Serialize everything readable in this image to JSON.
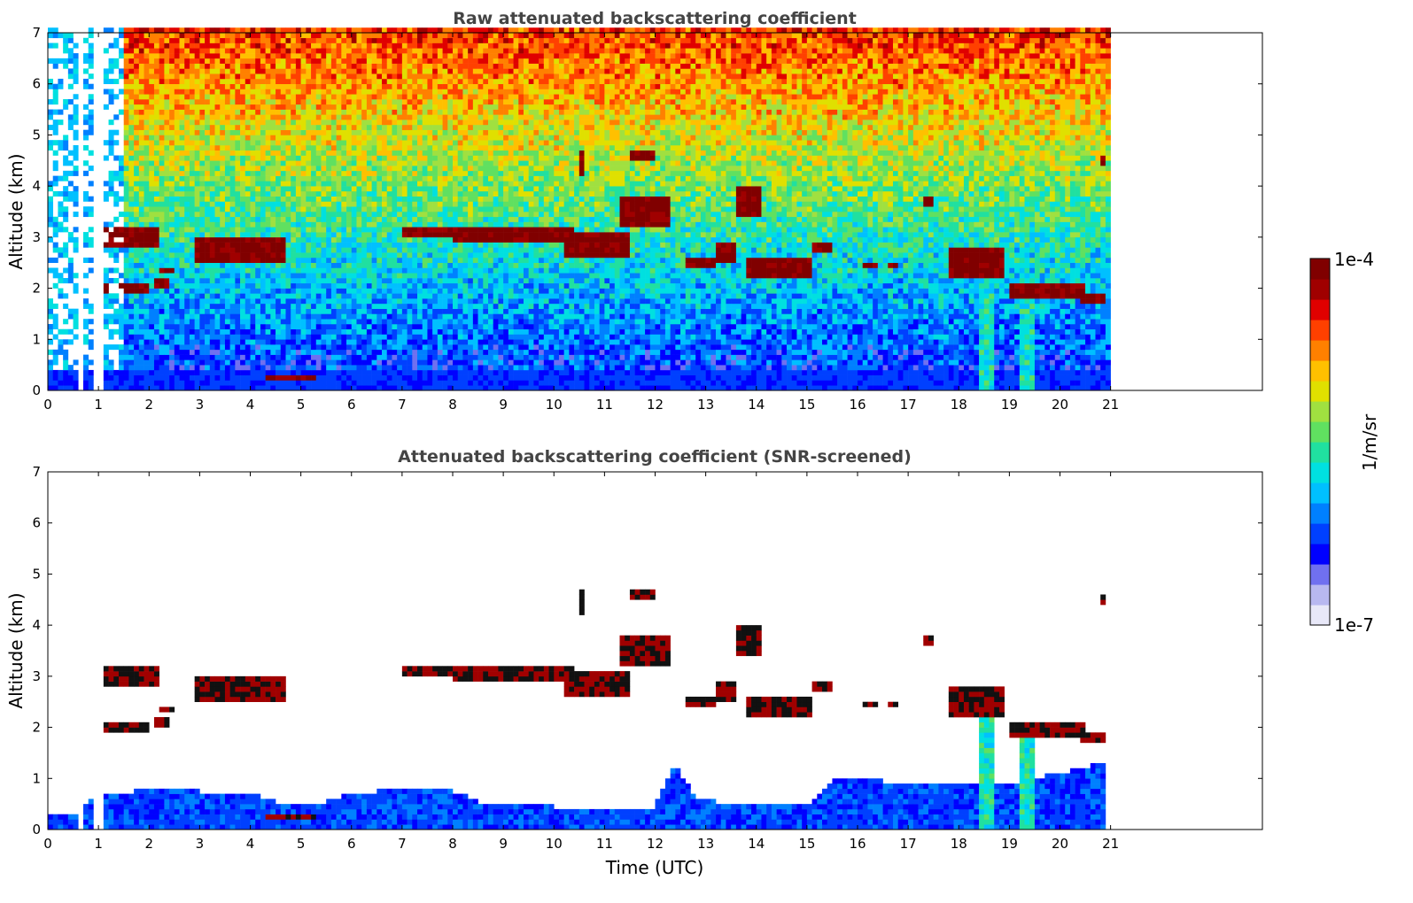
{
  "chart_data": [
    {
      "type": "heatmap",
      "title": "Raw attenuated backscattering coefficient",
      "xlabel": "",
      "ylabel": "Altitude (km)",
      "xlim": [
        0,
        24
      ],
      "ylim": [
        0,
        7
      ],
      "x_ticks": [
        0,
        1,
        2,
        3,
        4,
        5,
        6,
        7,
        8,
        9,
        10,
        11,
        12,
        13,
        14,
        15,
        16,
        17,
        18,
        19,
        20,
        21
      ],
      "y_ticks": [
        0,
        1,
        2,
        3,
        4,
        5,
        6,
        7
      ],
      "data_end_time": 20.95,
      "screened": false,
      "cloud_layers": [
        {
          "t": [
            1.1,
            2.2
          ],
          "z": [
            2.85,
            3.25
          ]
        },
        {
          "t": [
            2.2,
            2.5
          ],
          "z": [
            2.35,
            2.45
          ]
        },
        {
          "t": [
            2.9,
            4.7
          ],
          "z": [
            2.5,
            3.0
          ]
        },
        {
          "t": [
            1.1,
            2.0
          ],
          "z": [
            1.9,
            2.1
          ]
        },
        {
          "t": [
            2.1,
            2.4
          ],
          "z": [
            2.0,
            2.2
          ]
        },
        {
          "t": [
            7.0,
            8.0
          ],
          "z": [
            3.05,
            3.25
          ]
        },
        {
          "t": [
            8.0,
            10.4
          ],
          "z": [
            2.95,
            3.2
          ]
        },
        {
          "t": [
            10.2,
            11.5
          ],
          "z": [
            2.6,
            3.1
          ]
        },
        {
          "t": [
            11.3,
            12.3
          ],
          "z": [
            3.2,
            3.8
          ]
        },
        {
          "t": [
            11.5,
            12.0
          ],
          "z": [
            4.5,
            4.7
          ]
        },
        {
          "t": [
            10.5,
            10.6
          ],
          "z": [
            4.2,
            4.7
          ]
        },
        {
          "t": [
            12.6,
            13.2
          ],
          "z": [
            2.4,
            2.6
          ]
        },
        {
          "t": [
            13.2,
            13.6
          ],
          "z": [
            2.5,
            2.9
          ]
        },
        {
          "t": [
            13.6,
            14.1
          ],
          "z": [
            3.4,
            4.0
          ]
        },
        {
          "t": [
            13.8,
            15.1
          ],
          "z": [
            2.2,
            2.6
          ]
        },
        {
          "t": [
            15.1,
            15.5
          ],
          "z": [
            2.7,
            2.9
          ]
        },
        {
          "t": [
            16.1,
            16.4
          ],
          "z": [
            2.4,
            2.55
          ]
        },
        {
          "t": [
            16.6,
            16.8
          ],
          "z": [
            2.4,
            2.5
          ]
        },
        {
          "t": [
            17.3,
            17.5
          ],
          "z": [
            3.6,
            3.8
          ]
        },
        {
          "t": [
            17.8,
            18.9
          ],
          "z": [
            2.2,
            2.8
          ]
        },
        {
          "t": [
            19.0,
            20.5
          ],
          "z": [
            1.85,
            2.15
          ]
        },
        {
          "t": [
            20.4,
            20.95
          ],
          "z": [
            1.75,
            1.95
          ]
        },
        {
          "t": [
            20.8,
            20.95
          ],
          "z": [
            4.4,
            4.6
          ]
        },
        {
          "t": [
            4.3,
            5.3
          ],
          "z": [
            0.18,
            0.3
          ]
        }
      ],
      "precip_shafts": [
        {
          "t": [
            18.4,
            18.7
          ],
          "z": [
            0,
            2.4
          ]
        },
        {
          "t": [
            19.2,
            19.5
          ],
          "z": [
            0,
            1.9
          ]
        }
      ],
      "data_gaps": [
        {
          "t": [
            0.6,
            0.72
          ]
        },
        {
          "t": [
            0.87,
            0.95
          ]
        },
        {
          "t": [
            1.03,
            1.1
          ]
        },
        {
          "t": [
            1.38,
            1.45
          ]
        }
      ]
    },
    {
      "type": "heatmap",
      "title": "Attenuated backscattering coefficient (SNR-screened)",
      "xlabel": "Time (UTC)",
      "ylabel": "Altitude (km)",
      "xlim": [
        0,
        24
      ],
      "ylim": [
        0,
        7
      ],
      "x_ticks": [
        0,
        1,
        2,
        3,
        4,
        5,
        6,
        7,
        8,
        9,
        10,
        11,
        12,
        13,
        14,
        15,
        16,
        17,
        18,
        19,
        20,
        21
      ],
      "y_ticks": [
        0,
        1,
        2,
        3,
        4,
        5,
        6,
        7
      ],
      "data_end_time": 20.95,
      "screened": true,
      "boundary_layer_top": [
        [
          0,
          0.3
        ],
        [
          0.6,
          0.3
        ],
        [
          0.75,
          0.55
        ],
        [
          1,
          0.65
        ],
        [
          1.5,
          0.7
        ],
        [
          2,
          0.8
        ],
        [
          3,
          0.75
        ],
        [
          4,
          0.7
        ],
        [
          4.5,
          0.55
        ],
        [
          5,
          0.45
        ],
        [
          5.5,
          0.55
        ],
        [
          6,
          0.7
        ],
        [
          6.5,
          0.75
        ],
        [
          7,
          0.8
        ],
        [
          8,
          0.75
        ],
        [
          8.5,
          0.55
        ],
        [
          9,
          0.5
        ],
        [
          10,
          0.45
        ],
        [
          11,
          0.45
        ],
        [
          12,
          0.45
        ],
        [
          12.4,
          1.3
        ],
        [
          12.8,
          0.6
        ],
        [
          13.5,
          0.5
        ],
        [
          14,
          0.5
        ],
        [
          15,
          0.5
        ],
        [
          15.5,
          1.0
        ],
        [
          16,
          1.0
        ],
        [
          17,
          0.9
        ],
        [
          18,
          0.9
        ],
        [
          18.5,
          0.9
        ],
        [
          19,
          0.9
        ],
        [
          19.5,
          1.0
        ],
        [
          20,
          1.1
        ],
        [
          20.5,
          1.2
        ],
        [
          20.95,
          1.35
        ]
      ]
    }
  ],
  "colorbar": {
    "label": "1/m/sr",
    "max_label": "1e-4",
    "min_label": "1e-7",
    "scale": "log",
    "colors": [
      "#e8e8f8",
      "#b8b8f0",
      "#7070f0",
      "#0000ff",
      "#0040ff",
      "#0080ff",
      "#00c0ff",
      "#00e0e0",
      "#20e0a0",
      "#60e060",
      "#a0e040",
      "#e0e000",
      "#ffc000",
      "#ff8000",
      "#ff4000",
      "#e00000",
      "#a00000",
      "#800000"
    ]
  }
}
